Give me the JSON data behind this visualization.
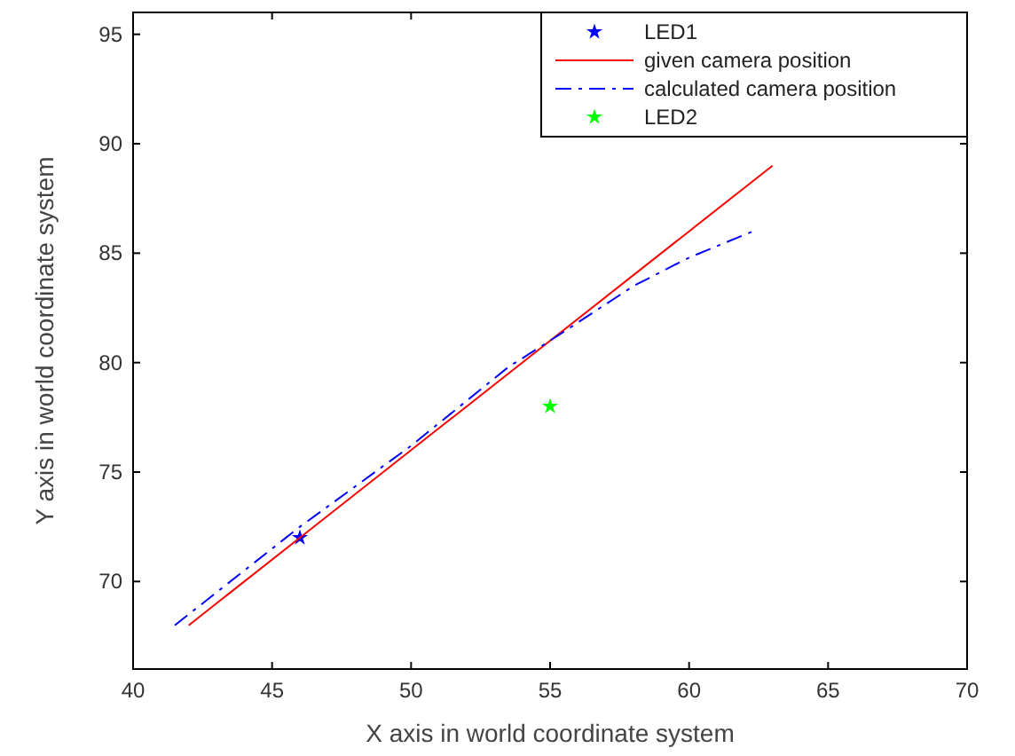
{
  "chart_data": {
    "type": "line",
    "xlabel": "X axis in world coordinate system",
    "ylabel": "Y axis in world coordinate system",
    "xlim": [
      40,
      70
    ],
    "ylim": [
      66,
      96
    ],
    "xticks": [
      40,
      45,
      50,
      55,
      60,
      65,
      70
    ],
    "yticks": [
      70,
      75,
      80,
      85,
      90,
      95
    ],
    "grid": false,
    "legend": "top right",
    "series": [
      {
        "name": "LED1",
        "type": "scatter",
        "marker": "star",
        "color": "#0000ff",
        "x": [
          46
        ],
        "values": [
          72
        ]
      },
      {
        "name": "given camera position",
        "line_style": "solid",
        "marker": "none",
        "color": "#ff0000",
        "x": [
          42,
          46,
          50,
          55,
          60,
          63
        ],
        "values": [
          68,
          72,
          76,
          81,
          86,
          89
        ]
      },
      {
        "name": "calculated camera position",
        "line_style": "dashed",
        "marker": "none",
        "color": "#0000ff",
        "x": [
          41.5,
          46,
          50,
          53.5,
          55,
          58,
          60,
          62.3
        ],
        "values": [
          68,
          72.5,
          76.2,
          79.8,
          81,
          83.5,
          84.8,
          86
        ]
      },
      {
        "name": "LED2",
        "type": "scatter",
        "marker": "star",
        "color": "#00ff00",
        "x": [
          55
        ],
        "values": [
          78
        ]
      }
    ]
  }
}
